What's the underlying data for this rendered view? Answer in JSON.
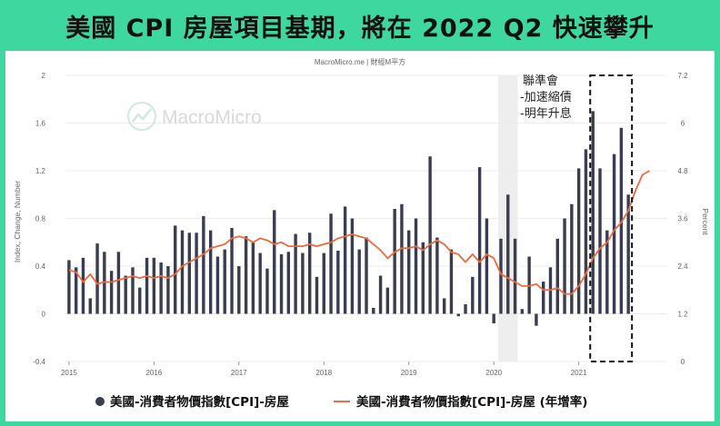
{
  "header": {
    "title": "美國 CPI 房屋項目基期，將在 2022 Q2 快速攀升",
    "source": "MacroMicro.me | 財經M平方",
    "watermark": "MacroMicro"
  },
  "annotation": {
    "lines": [
      "聯準會",
      "-加速縮債",
      "-明年升息"
    ]
  },
  "colors": {
    "background": "#3fd7a0",
    "bars": "#3a3d4f",
    "line": "#ef6a3e",
    "grid": "#ececec",
    "shade": "#eeeeee"
  },
  "chart_data": {
    "type": "bar",
    "title": "美國 CPI 房屋項目基期，將在 2022 Q2 快速攀升",
    "ylabel": "Index, Change, Number",
    "y2label": "Percent",
    "ylim": [
      -0.4,
      2.0
    ],
    "y2lim": [
      0,
      7.2
    ],
    "yticks": [
      "-0.4",
      "0",
      "0.4",
      "0.8",
      "1.2",
      "1.6",
      "2"
    ],
    "y2ticks": [
      "0",
      "1.2",
      "2.4",
      "3.6",
      "4.8",
      "6",
      "7.2"
    ],
    "xticks": [
      "2015",
      "2016",
      "2017",
      "2018",
      "2019",
      "2020",
      "2021"
    ],
    "grid": true,
    "legend_position": "bottom",
    "x_start": "2015-01",
    "shaded_period": [
      "2020-02",
      "2020-04"
    ],
    "highlight_box": [
      "2021-03",
      "2021-08"
    ],
    "series": [
      {
        "name": "美國-消費者物價指數[CPI]-房屋",
        "type": "bar",
        "axis": "left",
        "values": [
          0.45,
          0.39,
          0.47,
          0.13,
          0.59,
          0.52,
          0.36,
          0.52,
          0.32,
          0.39,
          0.22,
          0.47,
          0.47,
          0.43,
          0.4,
          0.74,
          0.7,
          0.68,
          0.68,
          0.82,
          0.7,
          0.48,
          0.54,
          0.72,
          0.4,
          0.65,
          0.6,
          0.51,
          0.38,
          0.87,
          0.5,
          0.52,
          0.67,
          0.51,
          0.68,
          0.31,
          0.51,
          0.84,
          0.53,
          0.9,
          0.8,
          0.54,
          0.64,
          0.05,
          0.32,
          0.22,
          0.88,
          0.92,
          0.7,
          0.8,
          0.6,
          1.32,
          0.64,
          0.13,
          0.54,
          -0.02,
          0.08,
          0.31,
          1.23,
          0.8,
          -0.08,
          0.63,
          1.0,
          0.63,
          0.04,
          0.48,
          -0.1,
          0.27,
          0.39,
          0.63,
          0.8,
          0.92,
          1.22,
          1.38,
          1.7,
          1.22,
          0.7,
          1.34,
          1.56,
          1.0
        ]
      },
      {
        "name": "美國-消費者物價指數[CPI]-房屋 (年增率)",
        "type": "line",
        "axis": "right",
        "values": [
          2.3,
          2.25,
          2.0,
          2.2,
          1.95,
          2.0,
          2.0,
          2.05,
          2.1,
          2.15,
          2.1,
          2.15,
          2.1,
          2.15,
          2.1,
          2.2,
          2.4,
          2.5,
          2.6,
          2.7,
          2.85,
          2.9,
          2.95,
          3.1,
          3.15,
          3.1,
          3.0,
          3.1,
          3.05,
          2.95,
          3.0,
          2.9,
          2.9,
          2.9,
          2.95,
          2.9,
          2.95,
          3.0,
          3.1,
          3.15,
          3.2,
          3.15,
          3.1,
          2.95,
          2.8,
          2.6,
          2.75,
          2.85,
          2.85,
          2.9,
          2.8,
          2.95,
          3.05,
          2.95,
          2.75,
          2.7,
          2.5,
          2.7,
          2.5,
          2.7,
          2.6,
          2.2,
          2.1,
          2.0,
          1.9,
          1.9,
          1.95,
          1.8,
          1.8,
          1.85,
          1.7,
          1.7,
          1.9,
          2.2,
          2.6,
          2.85,
          3.0,
          3.3,
          3.5,
          3.8,
          4.3,
          4.7,
          4.8
        ]
      }
    ]
  },
  "legend": [
    {
      "label": "美國-消費者物價指數[CPI]-房屋",
      "kind": "dot"
    },
    {
      "label": "美國-消費者物價指數[CPI]-房屋 (年增率)",
      "kind": "line"
    }
  ]
}
